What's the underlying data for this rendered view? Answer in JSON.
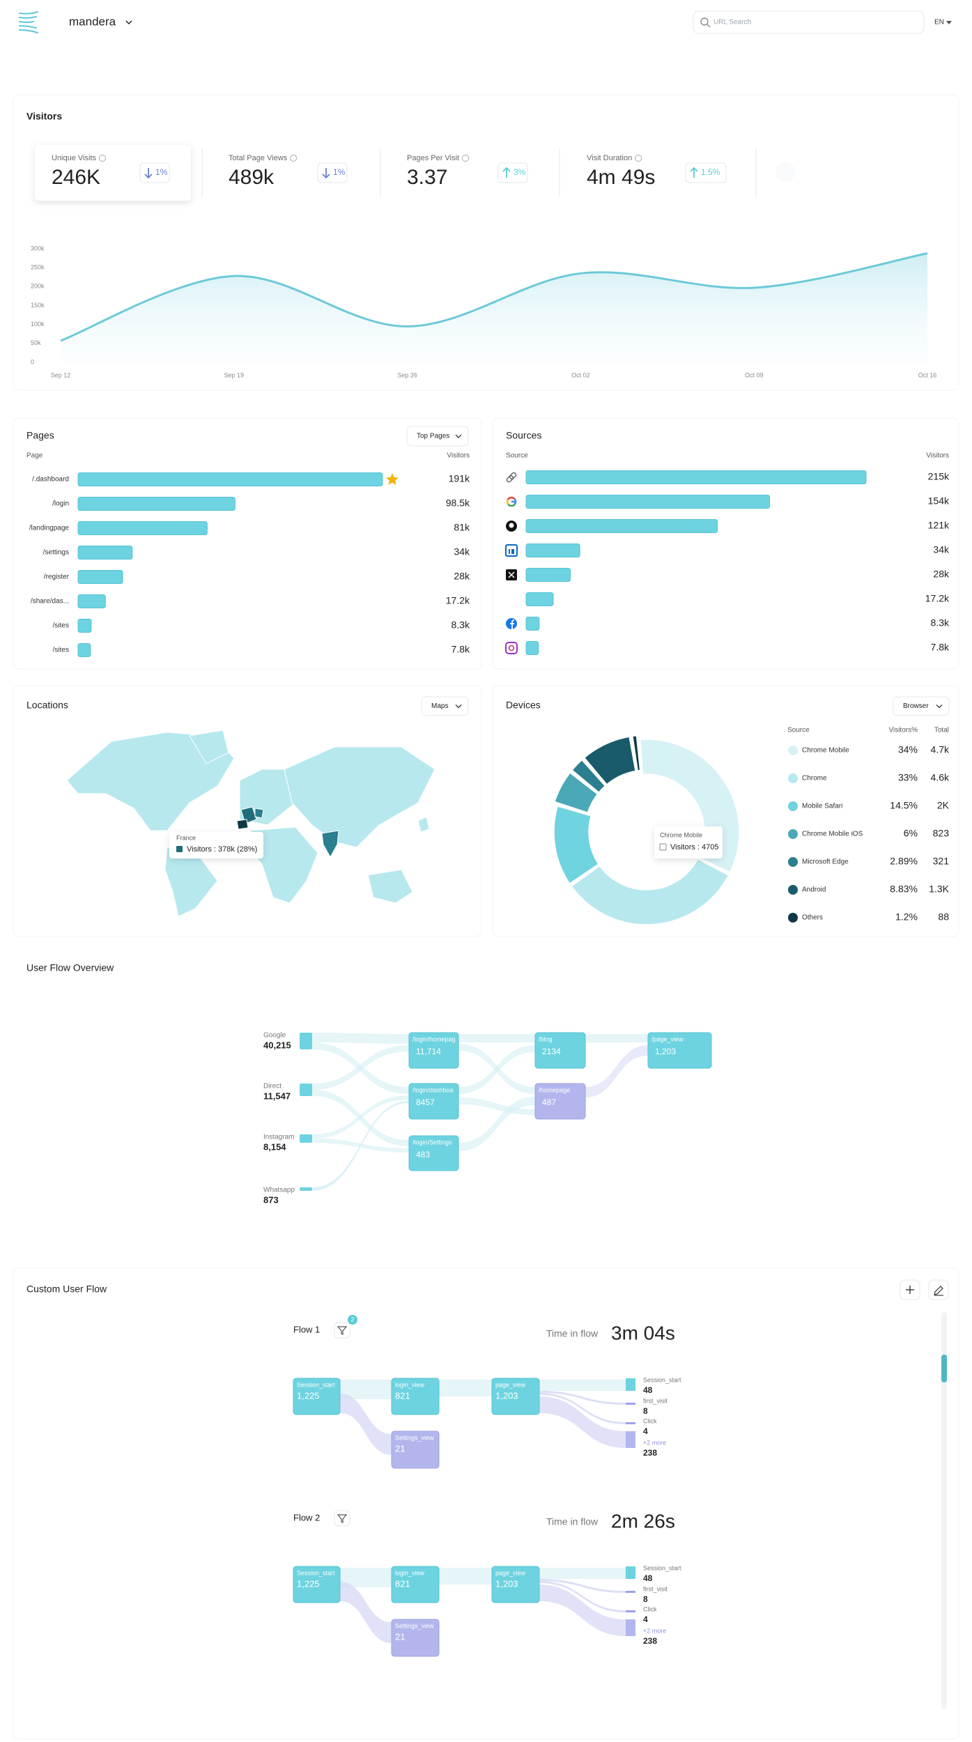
{
  "header": {
    "brand": "mandera",
    "search_placeholder": "URL Search",
    "language": "EN"
  },
  "visitors": {
    "title": "Visitors",
    "kpis": [
      {
        "label": "Unique Visits",
        "value": "246K",
        "change": "1%",
        "trend": "down"
      },
      {
        "label": "Total Page Views",
        "value": "489k",
        "change": "1%",
        "trend": "down"
      },
      {
        "label": "Pages Per Visit",
        "value": "3.37",
        "change": "3%",
        "trend": "up"
      },
      {
        "label": "Visit Duration",
        "value": "4m 49s",
        "change": "1.5%",
        "trend": "up"
      }
    ],
    "chart_data": {
      "type": "area",
      "x": [
        "Sep 12",
        "Sep 19",
        "Sep 26",
        "Oct 02",
        "Oct 09",
        "Oct 16"
      ],
      "values": [
        57000,
        228000,
        95000,
        235000,
        197000,
        288000
      ],
      "color": "#6cc9d8",
      "ylim": [
        0,
        300000
      ],
      "yticks": [
        0,
        {
          "value": 50000,
          "label": "50k"
        },
        {
          "value": 100000,
          "label": "100k"
        },
        {
          "value": 150000,
          "label": "150k"
        },
        {
          "value": 200000,
          "label": "200k"
        },
        {
          "value": 250000,
          "label": "250k"
        },
        {
          "value": 300000,
          "label": "300k"
        }
      ]
    }
  },
  "pages": {
    "title": "Pages",
    "filter": "Top Pages",
    "columns": [
      "Page",
      "Visitors"
    ],
    "rows": [
      {
        "name": "/.dashboard",
        "value": 191000,
        "label": "191k"
      },
      {
        "name": "/login",
        "value": 98500,
        "label": "98.5k"
      },
      {
        "name": "/landingpage",
        "value": 81000,
        "label": "81k"
      },
      {
        "name": "/settings",
        "value": 34000,
        "label": "34k"
      },
      {
        "name": "/register",
        "value": 28000,
        "label": "28k"
      },
      {
        "name": "/share/das...",
        "value": 17200,
        "label": "17.2k"
      },
      {
        "name": "/sites",
        "value": 8300,
        "label": "8.3k"
      },
      {
        "name": "/sites",
        "value": 7800,
        "label": "7.8k"
      }
    ]
  },
  "sources": {
    "title": "Sources",
    "columns": [
      "Source",
      "Visitors"
    ],
    "rows": [
      {
        "value": 215000,
        "label": "215k"
      },
      {
        "value": 154000,
        "label": "154k"
      },
      {
        "value": 121000,
        "label": "121k"
      },
      {
        "value": 34000,
        "label": "34k"
      },
      {
        "value": 28000,
        "label": "28k"
      },
      {
        "value": 17200,
        "label": "17.2k"
      },
      {
        "value": 8300,
        "label": "8.3k"
      },
      {
        "value": 7800,
        "label": "7.8k"
      }
    ]
  },
  "locations": {
    "title": "Locations",
    "filter": "Maps",
    "tooltip": {
      "country": "France",
      "text": "Visitors : 378k (28%)"
    }
  },
  "devices": {
    "title": "Devices",
    "filter": "Browser",
    "columns": [
      "Source",
      "Visitors%",
      "Total"
    ],
    "rows": [
      {
        "name": "Chrome Mobile",
        "percent": 34,
        "percent_label": "34%",
        "total": 4700,
        "total_label": "4.7k",
        "color": "#d7f2f5"
      },
      {
        "name": "Chrome",
        "percent": 33,
        "percent_label": "33%",
        "total": 4600,
        "total_label": "4.6k",
        "color": "#b6e8ee"
      },
      {
        "name": "Mobile Safari",
        "percent": 14.5,
        "percent_label": "14.5%",
        "total": 2000,
        "total_label": "2K",
        "color": "#6fd3e0"
      },
      {
        "name": "Chrome Mobile iOS",
        "percent": 6,
        "percent_label": "6%",
        "total": 823,
        "color": "#4aa8b7"
      },
      {
        "name": "Microsoft Edge",
        "percent": 2.89,
        "percent_label": "2.89%",
        "total": 321,
        "color": "#2b7f8f"
      },
      {
        "name": "Android",
        "percent": 8.83,
        "percent_label": "8.83%",
        "total": 1300,
        "total_label": "1.3K",
        "color": "#195a6b"
      },
      {
        "name": "Others",
        "percent": 1.2,
        "percent_label": "1.2%",
        "total": 88,
        "color": "#0f3946"
      }
    ],
    "tooltip": {
      "name": "Chrome Mobile",
      "text": "Visitors : 4705"
    }
  },
  "user_flow": {
    "title": "User Flow Overview",
    "sources": [
      {
        "name": "Google",
        "value": "40,215"
      },
      {
        "name": "Direct",
        "value": "11,547"
      },
      {
        "name": "Instagram",
        "value": "8,154"
      },
      {
        "name": "Whatsapp",
        "value": "873"
      }
    ],
    "nodes": [
      {
        "label": "/login/homepag",
        "value": "11,714"
      },
      {
        "label": "/login/dashboa",
        "value": "8457"
      },
      {
        "label": "/login/Settings",
        "value": "483"
      },
      {
        "label": "/blog",
        "value": "2134"
      },
      {
        "label": "/homepage",
        "value": "487"
      },
      {
        "label": "/page_view",
        "value": "1,203"
      }
    ]
  },
  "custom_flow": {
    "title": "Custom User Flow",
    "flows": [
      {
        "name": "Flow 1",
        "badge": "2",
        "time_label": "Time in flow",
        "time": "3m 04s",
        "nodes": [
          {
            "label": "Session_start",
            "value": "1,225"
          },
          {
            "label": "login_view",
            "value": "821"
          },
          {
            "label": "page_view",
            "value": "1,203"
          },
          {
            "label": "Settings_view",
            "value": "21"
          }
        ],
        "outcomes": [
          {
            "label": "Session_start",
            "value": "48"
          },
          {
            "label": "first_visit",
            "value": "8"
          },
          {
            "label": "Click",
            "value": "4"
          },
          {
            "label": "+2 more",
            "value": "238"
          }
        ]
      },
      {
        "name": "Flow 2",
        "time_label": "Time in flow",
        "time": "2m 26s",
        "nodes": [
          {
            "label": "Session_start",
            "value": "1,225"
          },
          {
            "label": "login_view",
            "value": "821"
          },
          {
            "label": "page_view",
            "value": "1,203"
          },
          {
            "label": "Settings_view",
            "value": "21"
          }
        ],
        "outcomes": [
          {
            "label": "Session_start",
            "value": "48"
          },
          {
            "label": "first_visit",
            "value": "8"
          },
          {
            "label": "Click",
            "value": "4"
          },
          {
            "label": "+2 more",
            "value": "238"
          }
        ]
      }
    ]
  }
}
